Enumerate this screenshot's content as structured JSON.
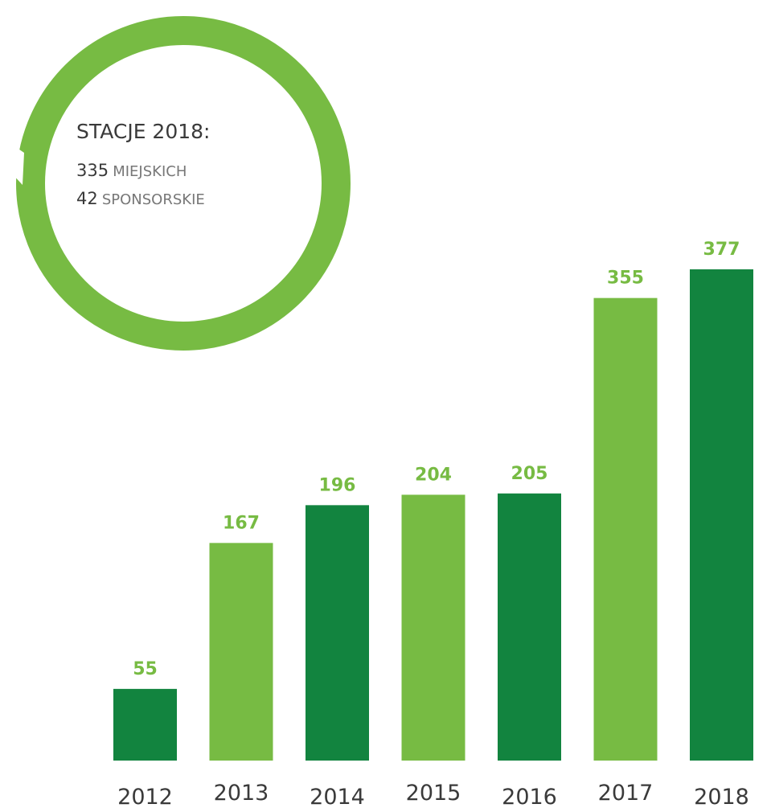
{
  "chart_data": {
    "type": "bar",
    "categories": [
      "2012",
      "2013",
      "2014",
      "2015",
      "2016",
      "2017",
      "2018"
    ],
    "values": [
      55,
      167,
      196,
      204,
      205,
      355,
      377
    ],
    "colors": [
      "#12843f",
      "#77bb43",
      "#12843f",
      "#77bb43",
      "#12843f",
      "#77bb43",
      "#12843f"
    ],
    "label_color": "#77bb43",
    "annotation": {
      "title": "STACJE 2018:",
      "lines": [
        {
          "number": 335,
          "label": "MIEJSKICH"
        },
        {
          "number": 42,
          "label": "SPONSORSKIE"
        }
      ],
      "color": "#77bb43"
    }
  }
}
